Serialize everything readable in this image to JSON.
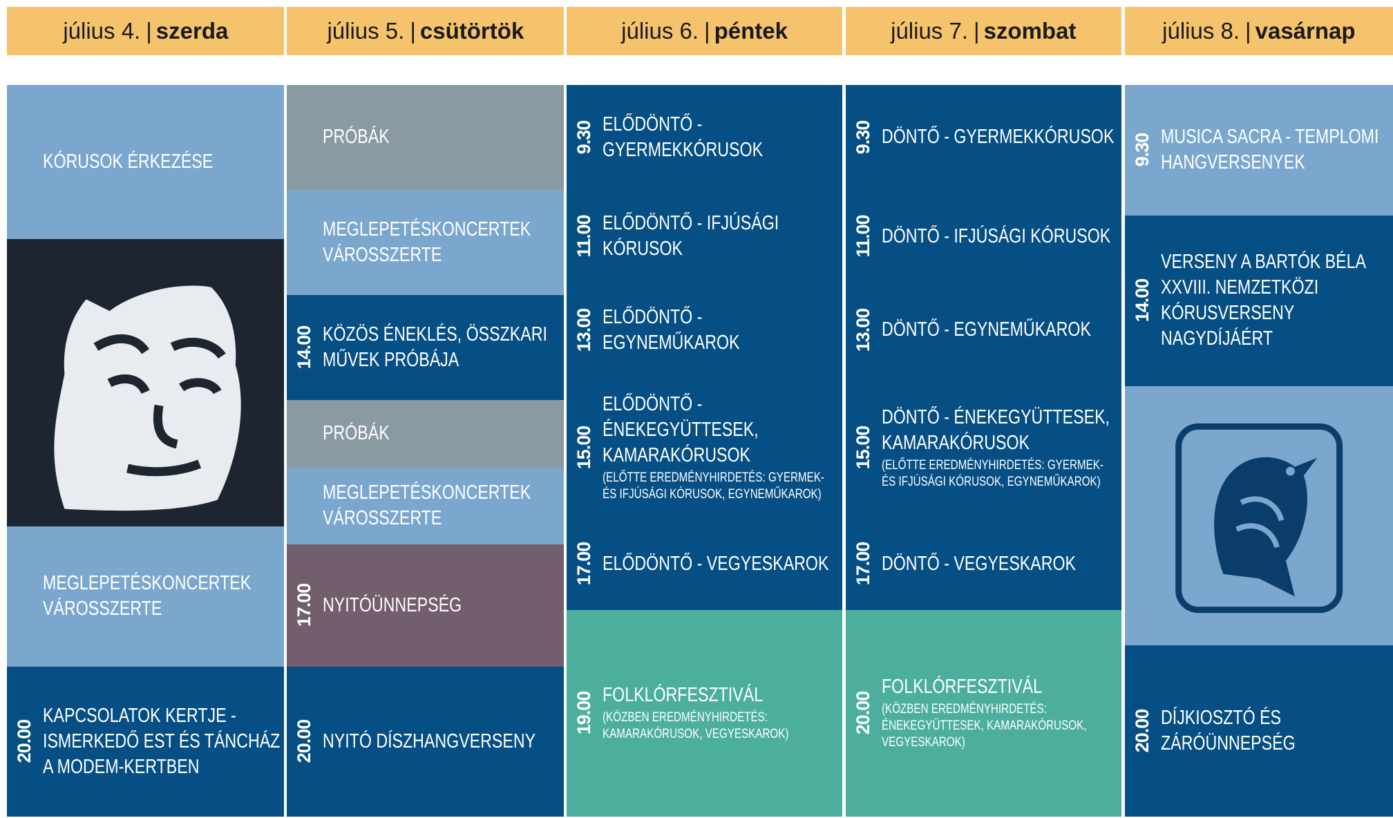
{
  "days": [
    {
      "date": "július 4.",
      "separator": "|",
      "weekday": "szerda",
      "blocks": [
        {
          "title": "KÓRUSOK ÉRKEZÉSE"
        },
        {
          "title": "MEGLEPETÉSKONCERTEK VÁROSSZERTE"
        },
        {
          "time": "20.00",
          "title": "KAPCSOLATOK KERTJE - ISMERKEDŐ EST ÉS TÁNCHÁZ A MODEM-KERTBEN"
        }
      ]
    },
    {
      "date": "július 5.",
      "separator": "|",
      "weekday": "csütörtök",
      "blocks": [
        {
          "title": "PRÓBÁK"
        },
        {
          "title": "MEGLEPETÉSKONCERTEK VÁROSSZERTE"
        },
        {
          "time": "14.00",
          "title": "KÖZÖS ÉNEKLÉS, ÖSSZKARI MŰVEK PRÓBÁJA"
        },
        {
          "title": "PRÓBÁK"
        },
        {
          "title": "MEGLEPETÉSKONCERTEK VÁROSSZERTE"
        },
        {
          "time": "17.00",
          "title": "NYITÓÜNNEPSÉG"
        },
        {
          "time": "20.00",
          "title": "NYITÓ DÍSZHANGVERSENY"
        }
      ]
    },
    {
      "date": "július 6.",
      "separator": "|",
      "weekday": "péntek",
      "blocks": [
        {
          "time": "9.30",
          "title": "ELŐDÖNTŐ - GYERMEKKÓRUSOK"
        },
        {
          "time": "11.00",
          "title": "ELŐDÖNTŐ - IFJÚSÁGI KÓRUSOK"
        },
        {
          "time": "13.00",
          "title": "ELŐDÖNTŐ - EGYNEMŰKAROK"
        },
        {
          "time": "15.00",
          "title": "ELŐDÖNTŐ - ÉNEKEGYÜTTESEK, KAMARAKÓRUSOK",
          "note": "(ELŐTTE EREDMÉNYHIRDETÉS: GYERMEK- ÉS IFJÚSÁGI KÓRUSOK, EGYNEMŰKAROK)"
        },
        {
          "time": "17.00",
          "title": "ELŐDÖNTŐ - VEGYESKAROK"
        },
        {
          "time": "19.00",
          "title": "FOLKLÓRFESZTIVÁL",
          "note": "(KÖZBEN EREDMÉNYHIRDETÉS: KAMARAKÓRUSOK, VEGYESKAROK)"
        }
      ]
    },
    {
      "date": "július 7.",
      "separator": "|",
      "weekday": "szombat",
      "blocks": [
        {
          "time": "9.30",
          "title": "DÖNTŐ - GYERMEKKÓRUSOK"
        },
        {
          "time": "11.00",
          "title": "DÖNTŐ - IFJÚSÁGI KÓRUSOK"
        },
        {
          "time": "13.00",
          "title": "DÖNTŐ - EGYNEMŰKAROK"
        },
        {
          "time": "15.00",
          "title": "DÖNTŐ - ÉNEKEGYÜTTESEK, KAMARAKÓRUSOK",
          "note": "(ELŐTTE EREDMÉNYHIRDETÉS: GYERMEK- ÉS IFJÚSÁGI KÓRUSOK, EGYNEMŰKAROK)"
        },
        {
          "time": "17.00",
          "title": "DÖNTŐ - VEGYESKAROK"
        },
        {
          "time": "20.00",
          "title": "FOLKLÓRFESZTIVÁL",
          "note": "(KÖZBEN EREDMÉNYHIRDETÉS: ÉNEKEGYÜTTESEK, KAMARAKÓRUSOK, VEGYESKAROK)"
        }
      ]
    },
    {
      "date": "július 8.",
      "separator": "|",
      "weekday": "vasárnap",
      "blocks": [
        {
          "time": "9.30",
          "title": "MUSICA SACRA - TEMPLOMI HANGVERSENYEK"
        },
        {
          "time": "14.00",
          "title": "VERSENY A BARTÓK BÉLA XXVIII. NEMZETKÖZI KÓRUSVERSENY NAGYDÍJÁÉRT"
        },
        {
          "time": "20.00",
          "title": "DÍJKIOSZTÓ ÉS ZÁRÓÜNNEPSÉG"
        }
      ]
    }
  ]
}
